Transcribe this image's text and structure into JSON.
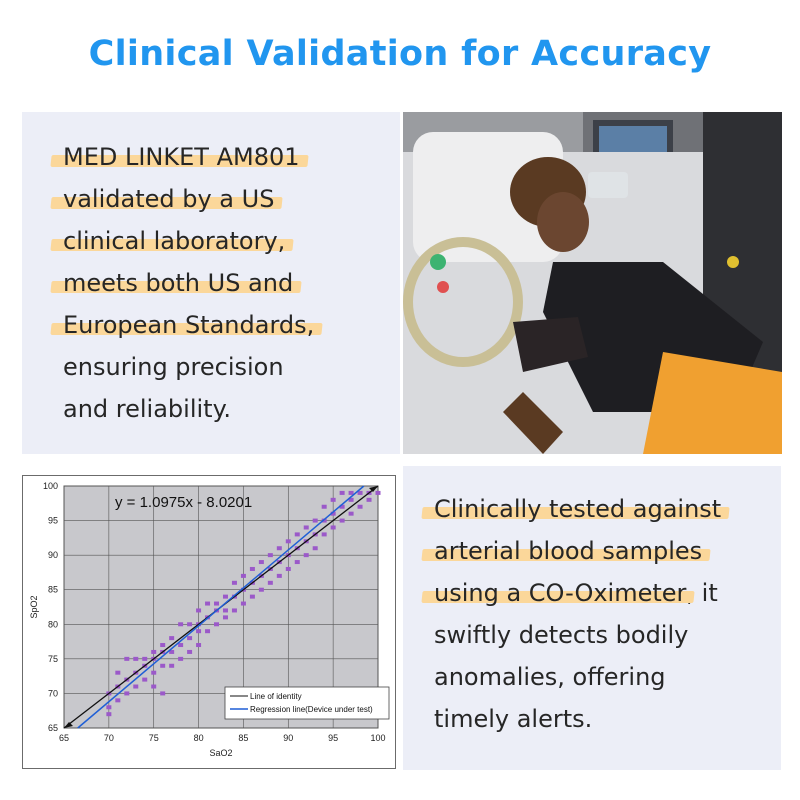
{
  "title": "Clinical Validation for Accuracy",
  "panel1": {
    "lines": [
      {
        "text": "MED LINKET AM801",
        "highlight": true
      },
      {
        "text": "validated by a US",
        "highlight": true
      },
      {
        "text": "clinical laboratory,",
        "highlight": true
      },
      {
        "text": "meets both US and",
        "highlight": true
      },
      {
        "text": "European Standards,",
        "highlight": true
      },
      {
        "text": "ensuring precision",
        "highlight": false
      },
      {
        "text": "and reliability.",
        "highlight": false
      }
    ]
  },
  "panel2": {
    "line1": "Clinically tested against",
    "line2": "arterial blood samples",
    "line3_hl": "using a CO-Oximeter",
    "line3_rest": ", it",
    "line4": "swiftly detects bodily",
    "line5": "anomalies, offering",
    "line6": "timely alerts."
  },
  "photo": {
    "description_icon": "patient-in-hospital-bed-photo"
  },
  "chart_data": {
    "type": "scatter",
    "equation": "y = 1.0975x - 8.0201",
    "xlabel": "SaO2",
    "ylabel": "SpO2",
    "xlim": [
      65,
      100
    ],
    "ylim": [
      65,
      100
    ],
    "xticks": [
      "65",
      "70",
      "75",
      "80",
      "85",
      "90",
      "95",
      "100"
    ],
    "yticks": [
      "65",
      "70",
      "75",
      "80",
      "85",
      "90",
      "95",
      "100"
    ],
    "grid": true,
    "legend_position": "bottom-right",
    "legend": [
      {
        "label": "Line of identity",
        "color": "#111111"
      },
      {
        "label": "Regression line(Device under test)",
        "color": "#1f5fd6"
      }
    ],
    "identity": {
      "slope": 1,
      "intercept": 0
    },
    "regression": {
      "slope": 1.0975,
      "intercept": -8.0201
    },
    "point_color": "#9b59c9",
    "points": [
      [
        70,
        67
      ],
      [
        70,
        68
      ],
      [
        70,
        70
      ],
      [
        71,
        69
      ],
      [
        71,
        71
      ],
      [
        71,
        73
      ],
      [
        72,
        70
      ],
      [
        72,
        72
      ],
      [
        72,
        75
      ],
      [
        73,
        71
      ],
      [
        73,
        73
      ],
      [
        73,
        75
      ],
      [
        74,
        72
      ],
      [
        74,
        74
      ],
      [
        74,
        75
      ],
      [
        75,
        71
      ],
      [
        75,
        73
      ],
      [
        75,
        75
      ],
      [
        75,
        76
      ],
      [
        76,
        70
      ],
      [
        76,
        74
      ],
      [
        76,
        76
      ],
      [
        76,
        77
      ],
      [
        77,
        74
      ],
      [
        77,
        76
      ],
      [
        77,
        78
      ],
      [
        78,
        75
      ],
      [
        78,
        77
      ],
      [
        78,
        80
      ],
      [
        79,
        76
      ],
      [
        79,
        78
      ],
      [
        79,
        80
      ],
      [
        80,
        77
      ],
      [
        80,
        79
      ],
      [
        80,
        80
      ],
      [
        80,
        82
      ],
      [
        81,
        79
      ],
      [
        81,
        81
      ],
      [
        81,
        83
      ],
      [
        82,
        80
      ],
      [
        82,
        82
      ],
      [
        82,
        83
      ],
      [
        83,
        81
      ],
      [
        83,
        82
      ],
      [
        83,
        84
      ],
      [
        84,
        82
      ],
      [
        84,
        84
      ],
      [
        84,
        86
      ],
      [
        85,
        83
      ],
      [
        85,
        85
      ],
      [
        85,
        87
      ],
      [
        86,
        84
      ],
      [
        86,
        86
      ],
      [
        86,
        88
      ],
      [
        87,
        85
      ],
      [
        87,
        87
      ],
      [
        87,
        89
      ],
      [
        88,
        86
      ],
      [
        88,
        88
      ],
      [
        88,
        90
      ],
      [
        89,
        87
      ],
      [
        89,
        89
      ],
      [
        89,
        91
      ],
      [
        90,
        88
      ],
      [
        90,
        90
      ],
      [
        90,
        92
      ],
      [
        91,
        89
      ],
      [
        91,
        91
      ],
      [
        91,
        93
      ],
      [
        92,
        90
      ],
      [
        92,
        92
      ],
      [
        92,
        94
      ],
      [
        93,
        91
      ],
      [
        93,
        93
      ],
      [
        93,
        95
      ],
      [
        94,
        93
      ],
      [
        94,
        95
      ],
      [
        94,
        97
      ],
      [
        95,
        94
      ],
      [
        95,
        96
      ],
      [
        95,
        98
      ],
      [
        96,
        95
      ],
      [
        96,
        97
      ],
      [
        96,
        99
      ],
      [
        97,
        96
      ],
      [
        97,
        98
      ],
      [
        97,
        99
      ],
      [
        98,
        97
      ],
      [
        98,
        99
      ],
      [
        99,
        98
      ],
      [
        99,
        99
      ],
      [
        100,
        99
      ]
    ]
  }
}
